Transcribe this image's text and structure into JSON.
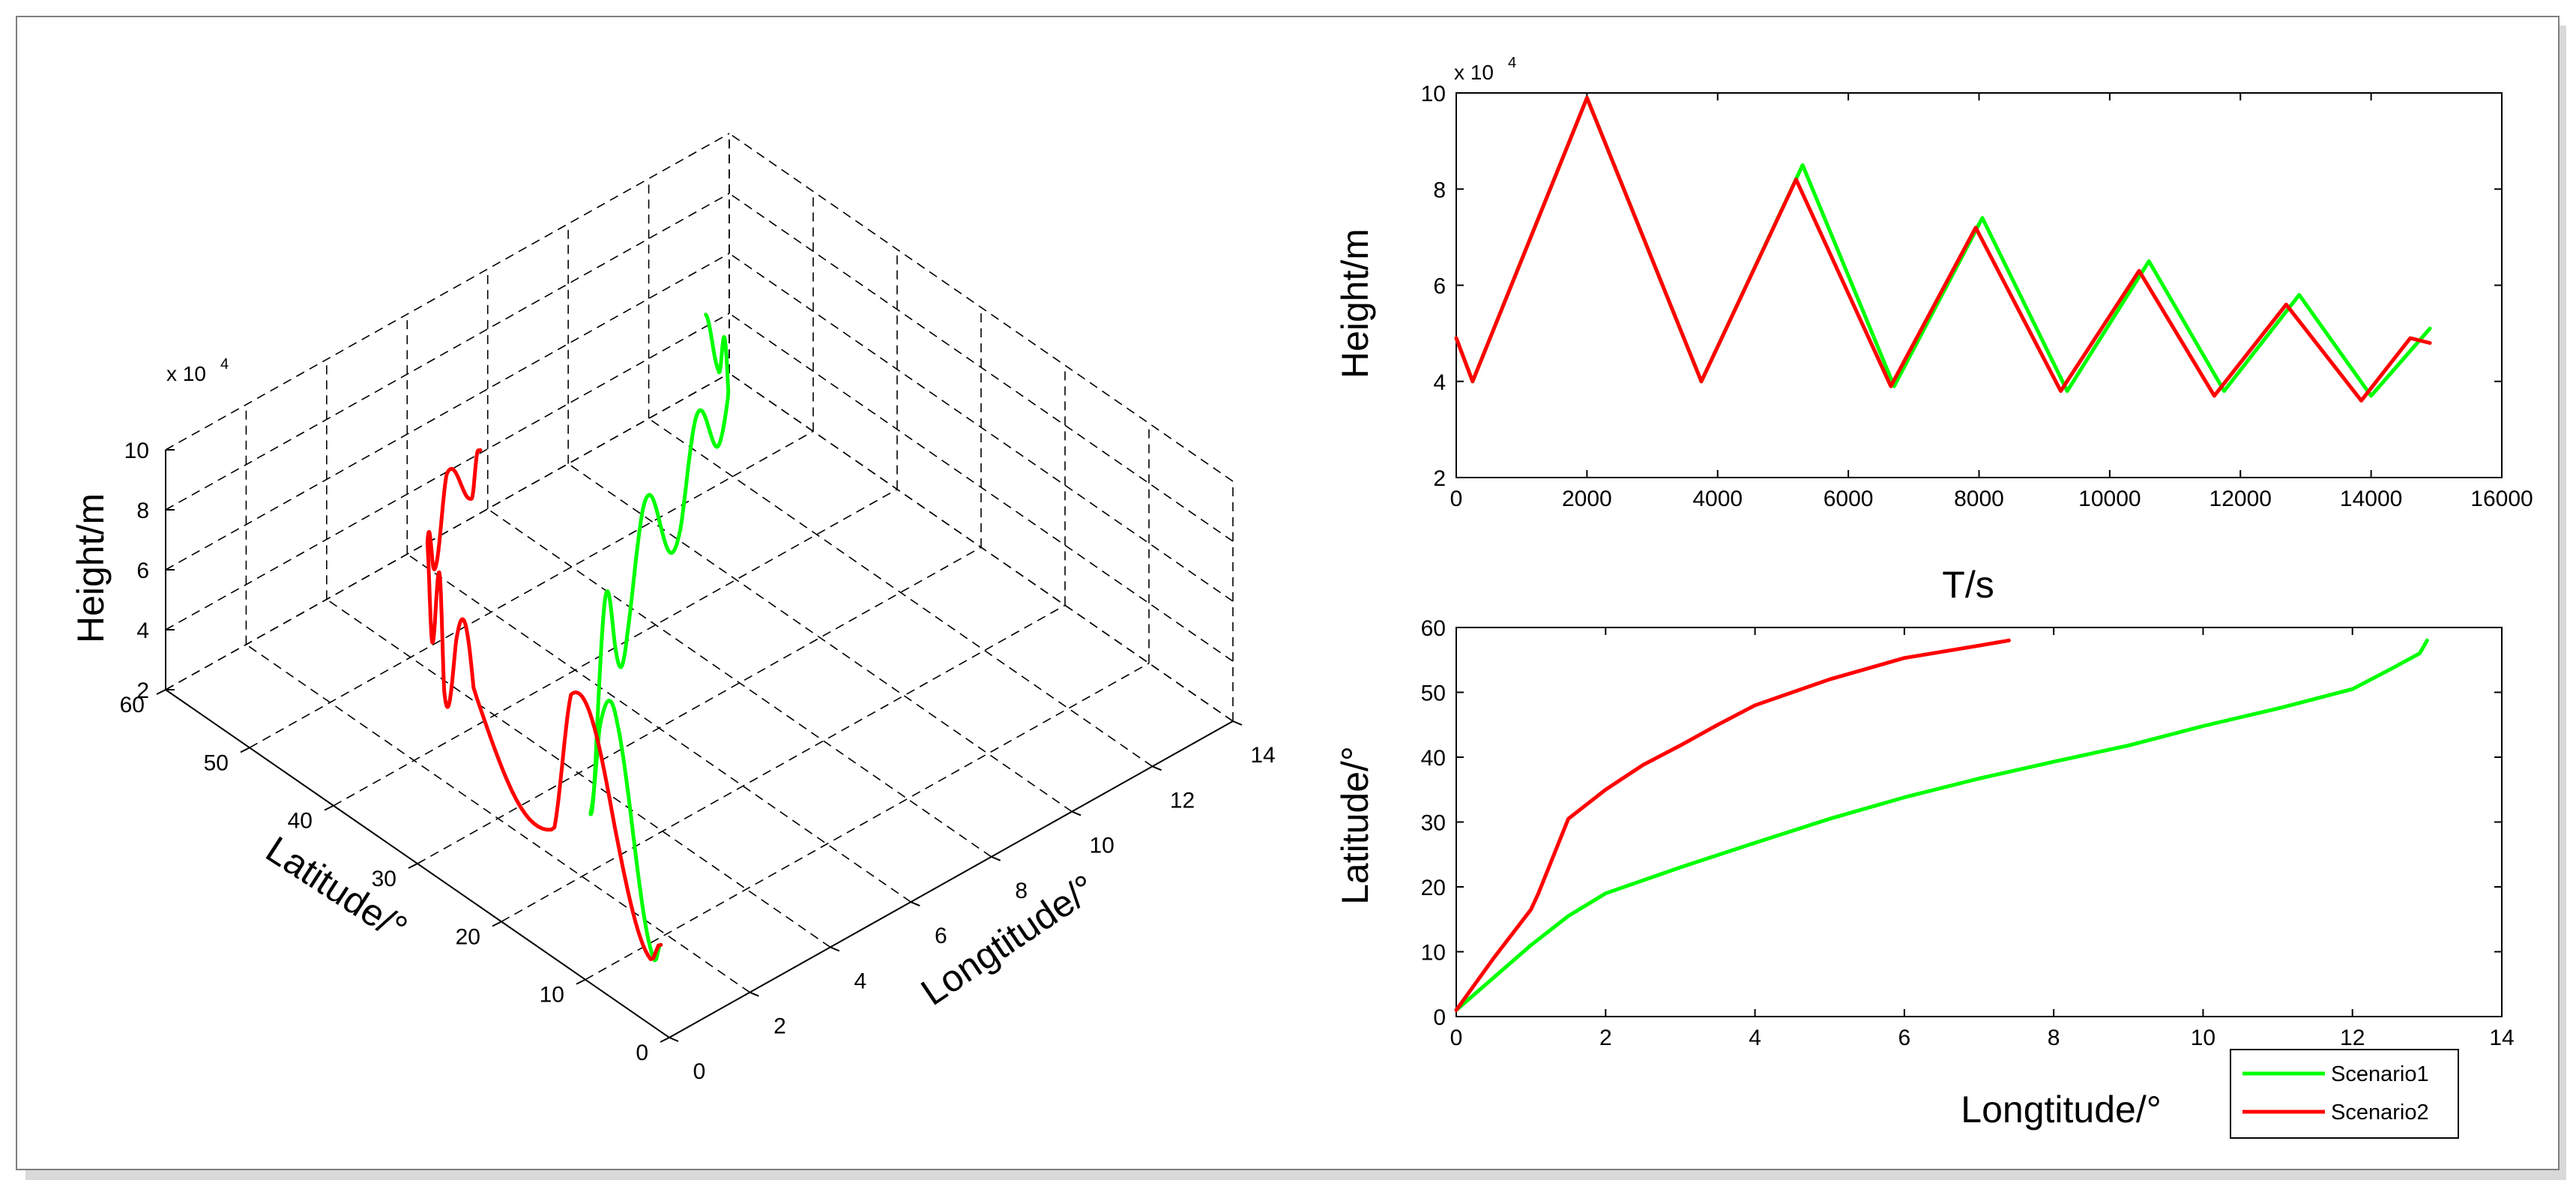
{
  "chart_data": [
    {
      "id": "chart3d",
      "type": "line-3d",
      "xlabel": "Longtitude/°",
      "ylabel": "Latitude/°",
      "zlabel": "Height/m",
      "z_exponent": "x 10",
      "z_exponent_power": "4",
      "xlim": [
        0,
        14
      ],
      "ylim": [
        0,
        60
      ],
      "zlim": [
        2,
        10
      ],
      "xticks": [
        "0",
        "2",
        "4",
        "6",
        "8",
        "10",
        "12",
        "14"
      ],
      "yticks": [
        "0",
        "10",
        "20",
        "30",
        "40",
        "50",
        "60"
      ],
      "zticks": [
        "2",
        "4",
        "6",
        "8",
        "10"
      ],
      "grid": true,
      "series": [
        {
          "name": "Scenario1",
          "color": "#00ff00"
        },
        {
          "name": "Scenario2",
          "color": "#ff0000"
        }
      ]
    },
    {
      "id": "heightTime",
      "type": "line",
      "xlabel": "T/s",
      "ylabel": "Height/m",
      "y_exponent": "x 10",
      "y_exponent_power": "4",
      "xlim": [
        0,
        16000
      ],
      "ylim": [
        2,
        10
      ],
      "xticks": [
        "0",
        "2000",
        "4000",
        "6000",
        "8000",
        "10000",
        "12000",
        "14000",
        "16000"
      ],
      "yticks": [
        "2",
        "4",
        "6",
        "8",
        "10"
      ],
      "series": [
        {
          "name": "Scenario1",
          "color": "#00ff00",
          "x": [
            0,
            250,
            2000,
            3750,
            5300,
            6700,
            8050,
            9350,
            10600,
            11750,
            12900,
            14000,
            14900
          ],
          "y": [
            4.9,
            4.0,
            9.9,
            4.0,
            8.5,
            3.9,
            7.4,
            3.8,
            6.5,
            3.8,
            5.8,
            3.7,
            5.1
          ]
        },
        {
          "name": "Scenario2",
          "color": "#ff0000",
          "x": [
            0,
            250,
            2000,
            3750,
            5200,
            6650,
            7950,
            9250,
            10450,
            11600,
            12700,
            13850,
            14600,
            14900
          ],
          "y": [
            4.9,
            4.0,
            9.9,
            4.0,
            8.2,
            3.9,
            7.2,
            3.8,
            6.3,
            3.7,
            5.6,
            3.6,
            4.9,
            4.8
          ]
        }
      ]
    },
    {
      "id": "latLon",
      "type": "line",
      "xlabel": "Longtitude/°",
      "ylabel": "Latitude/°",
      "xlim": [
        0,
        14
      ],
      "ylim": [
        0,
        60
      ],
      "xticks": [
        "0",
        "2",
        "4",
        "6",
        "8",
        "10",
        "12",
        "14"
      ],
      "yticks": [
        "0",
        "10",
        "20",
        "30",
        "40",
        "50",
        "60"
      ],
      "legend_position": "bottom-right (outside)",
      "series": [
        {
          "name": "Scenario1",
          "color": "#00ff00",
          "x": [
            0,
            0.5,
            1.0,
            1.5,
            2,
            3,
            4,
            5,
            6,
            7,
            8,
            9,
            10,
            11,
            12,
            12.5,
            12.9,
            13.0
          ],
          "y": [
            1,
            6,
            11,
            15.5,
            19,
            23,
            26.8,
            30.5,
            33.8,
            36.7,
            39.3,
            41.8,
            44.8,
            47.5,
            50.5,
            53.5,
            56,
            58
          ]
        },
        {
          "name": "Scenario2",
          "color": "#ff0000",
          "x": [
            0,
            0.5,
            1.0,
            1.1,
            1.5,
            2,
            2.5,
            3,
            3.5,
            4,
            5,
            6,
            7,
            7.4
          ],
          "y": [
            1,
            9,
            16.5,
            19,
            30.5,
            35,
            38.8,
            41.8,
            45,
            48,
            52,
            55.3,
            57.2,
            58
          ]
        }
      ]
    }
  ],
  "legend": {
    "items": [
      {
        "label": "Scenario1",
        "color": "#00ff00"
      },
      {
        "label": "Scenario2",
        "color": "#ff0000"
      }
    ]
  }
}
